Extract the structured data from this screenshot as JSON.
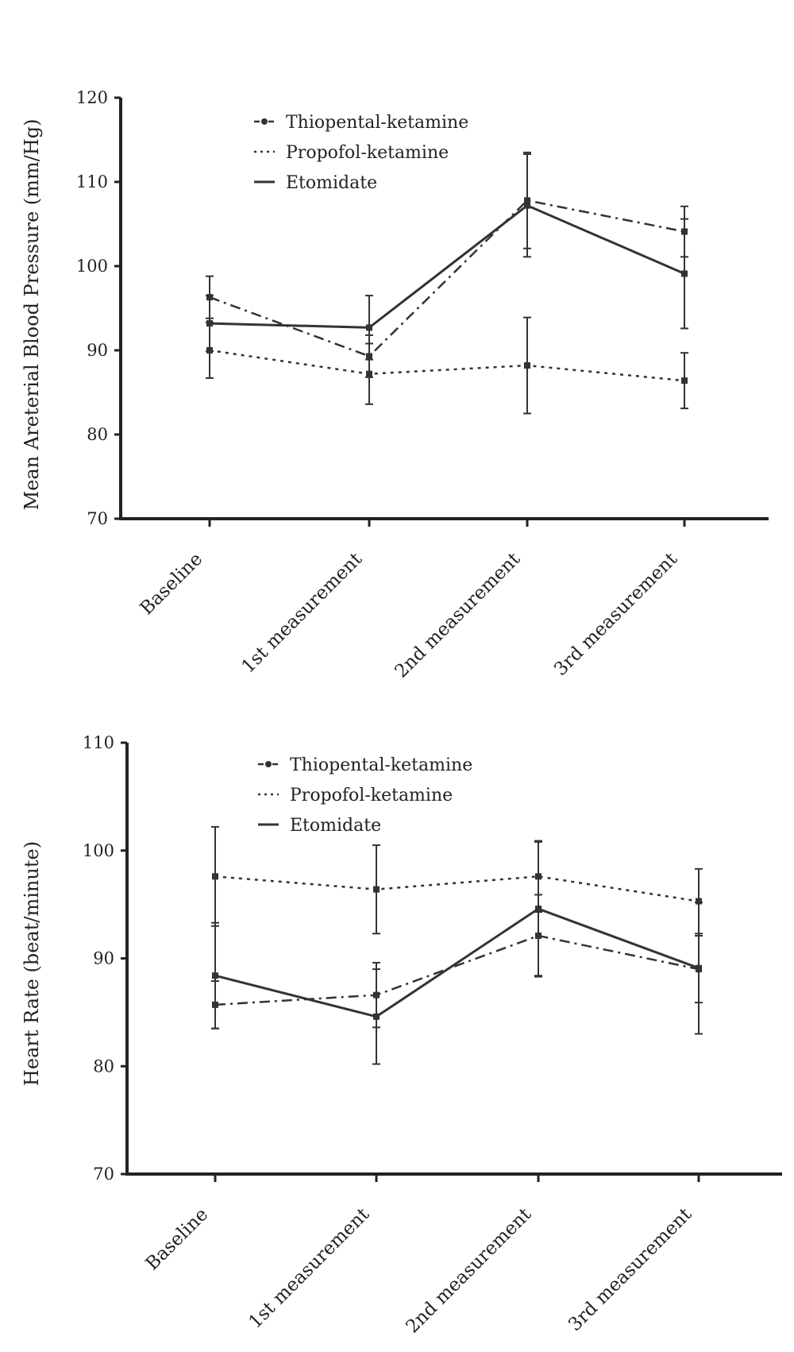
{
  "colors": {
    "ink": "#222222",
    "line": "#333333",
    "background": "#ffffff"
  },
  "chart_data": [
    {
      "type": "line",
      "title": "",
      "xlabel": "",
      "ylabel": "Mean Areterial Blood Pressure (mm/Hg)",
      "categories": [
        "Baseline",
        "1st measurement",
        "2nd measurement",
        "3rd measurement"
      ],
      "ylim": [
        70,
        120
      ],
      "yticks": [
        70,
        80,
        90,
        100,
        110,
        120
      ],
      "grid": false,
      "legend_position": "top-left",
      "series": [
        {
          "name": "Thiopental-ketamine",
          "style": "dashdot",
          "values": [
            96.3,
            89.3,
            107.8,
            104.1
          ],
          "errors": [
            2.5,
            2.5,
            5.7,
            3.0
          ]
        },
        {
          "name": "Propofol-ketamine",
          "style": "dotted",
          "values": [
            90.0,
            87.2,
            88.2,
            86.4
          ],
          "errors": [
            3.3,
            3.6,
            5.7,
            3.3
          ]
        },
        {
          "name": "Etomidate",
          "style": "solid",
          "values": [
            93.2,
            92.7,
            107.2,
            99.1
          ],
          "errors": [
            3.3,
            3.8,
            6.1,
            6.5
          ]
        }
      ]
    },
    {
      "type": "line",
      "title": "",
      "xlabel": "",
      "ylabel": "Heart Rate (beat/minute)",
      "categories": [
        "Baseline",
        "1st measurement",
        "2nd measurement",
        "3rd measurement"
      ],
      "ylim": [
        70,
        110
      ],
      "yticks": [
        70,
        80,
        90,
        100,
        110
      ],
      "grid": false,
      "legend_position": "top-left",
      "series": [
        {
          "name": "Thiopental-ketamine",
          "style": "dashdot",
          "values": [
            85.7,
            86.6,
            92.1,
            89.0
          ],
          "errors": [
            2.2,
            3.0,
            3.8,
            3.1
          ]
        },
        {
          "name": "Propofol-ketamine",
          "style": "dotted",
          "values": [
            97.6,
            96.4,
            97.6,
            95.3
          ],
          "errors": [
            4.6,
            4.1,
            3.3,
            3.0
          ]
        },
        {
          "name": "Etomidate",
          "style": "solid",
          "values": [
            88.4,
            84.6,
            94.6,
            89.1
          ],
          "errors": [
            4.9,
            4.4,
            6.2,
            6.1
          ]
        }
      ]
    }
  ]
}
